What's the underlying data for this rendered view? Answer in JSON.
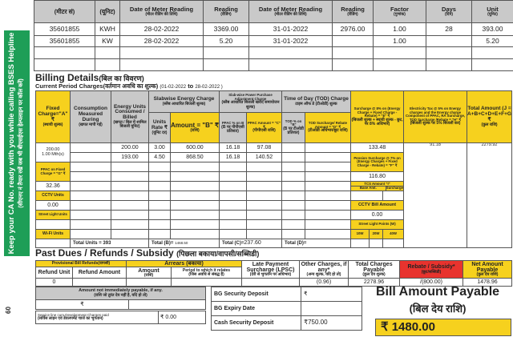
{
  "banner": {
    "line1": "Keep your CA No. ready with you while calling BSES Helpline",
    "line2": "(सीएनए नं तैयार रखें जब भी बीएसईएस हेल्पलाइन पर कॉल करें)"
  },
  "side_number": "60",
  "meter": {
    "headers": {
      "meter_no": "(मीटर सं)",
      "unit": "(यूनिट)",
      "date1": "Date of Meter Reading",
      "date1_hi": "(मीटर रीडिंग की तिथि)",
      "reading1": "Reading",
      "reading1_hi": "(रीडिंग)",
      "date2": "Date of Meter Reading",
      "date2_hi": "(मीटर रीडिंग की तिथि)",
      "reading2": "Reading",
      "reading2_hi": "(रीडिंग)",
      "factor": "Factor",
      "factor_hi": "(गुणांक)",
      "days": "Days",
      "days_hi": "(दिन)",
      "units": "Unit",
      "units_hi": "(यूनिट)"
    },
    "rows": [
      [
        "35601855",
        "KWH",
        "28-02-2022",
        "3369.00",
        "31-01-2022",
        "2976.00",
        "1.00",
        "28",
        "393.00"
      ],
      [
        "35601855",
        "KW",
        "28-02-2022",
        "5.20",
        "31-01-2022",
        "",
        "1.00",
        "",
        "5.20"
      ]
    ]
  },
  "billing": {
    "title": "Billing Details",
    "title_hi": "(बिल का विवरण)",
    "period_label": "Current Period Charges",
    "period_label_hi": "(वर्तमान अवधि का शुल्क)",
    "period_from": "(01-02-2022",
    "period_to_word": "to",
    "period_to": "28-02-2022 )",
    "h": {
      "fixed": "Fixed Charge=\"A\" ₹",
      "fixed_hi": "(स्थायी शुल्क)",
      "consumption": "Consumption Measured During",
      "consumption_hi": "(खपत मापी गई)",
      "energy_units": "Energy Units Consumed / Billed",
      "energy_units_hi": "(खपत / बिल में शामिल बिजली यूनिट)",
      "slab_energy": "Slabwise Energy Charge",
      "slab_energy_hi": "(स्लैब आधारित बिजली शुल्क)",
      "rate": "Units Rate ₹",
      "rate_hi": "(यूनिट दर)",
      "amount_b": "Amount = \"B\" ₹",
      "amount_b_hi": "(राशि)",
      "slab_ppac": "Slab-wise Power Purchase Adjustment Charge",
      "slab_ppac_hi": "(स्लैब आधारित बिजली खरीद समायोजन शुल्क)",
      "ppac_pct": "PPAC % on B",
      "ppac_pct_hi": "(B पर पीपीएसी प्रतिशत)",
      "ppac_amt": "PPAC Amount = \"C\" ₹",
      "ppac_amt_hi": "(पीपीएसी राशि)",
      "tod": "Time of Day (TOD) Charge",
      "tod_hi": "टाइम ऑफ डे (टीओडी) शुल्क",
      "tod_pct": "TOD % on \"B\"",
      "tod_pct_hi": "(B पर टीओडी प्रतिशत)",
      "tod_amt": "TOD Surcharge/ Rebate Amount = \"D\" ₹",
      "tod_amt_hi": "(टीओडी अधिभार/छूट राशि)",
      "surcharge": "Surcharge @ 8% on (Energy Charge + Fixed Charge - Rebate) = \"E\" ₹",
      "surcharge_hi": "(बिजली शुल्क + स्थायी शुल्क - छूट, पर 8% अधिभार)",
      "etax": "Electricity Tax @ 5% on Energy charges and the Energy charge Component of PPAC, RA Surcharge, TOD Surcharge /Rebate = \"H\" ₹",
      "etax_hi": "(बिजली शुल्क पर 5% बिजली कर)",
      "total": "Total Amount (J = A+B+C+D+E+F+G+H+I) ₹",
      "total_hi": "(कुल राशि)"
    },
    "fixed_value": "200.00",
    "fixed_months": "1.00 Mth(s)",
    "ppac_fixed_label": "PPAC on Fixed Charge = \"G\" ₹",
    "ppac_fixed_value": "32.36",
    "cctv_units_label": "CCTV Units",
    "cctv_units_value": "0.00",
    "street_units_label": "Street Light Units",
    "wifi_units_label": "Wi-Fi Units",
    "slabs": [
      {
        "units": "200.00",
        "rate": "3.00",
        "amount": "600.00",
        "ppac_pct": "16.18",
        "ppac_amt": "97.08"
      },
      {
        "units": "193.00",
        "rate": "4.50",
        "amount": "868.50",
        "ppac_pct": "16.18",
        "ppac_amt": "140.52"
      }
    ],
    "surcharge_value": "133.48",
    "pension_label": "Pension Surcharge @ 7% on (Energy Charges + Fixed Charge - Rebate) = \"F\" ₹",
    "pension_value": "116.80",
    "tcs_label": "TCS Amount \"I\"",
    "tcs_base": "Base Amt.",
    "tcs_surcharge": "Surcharge",
    "cctv_bill_label": "CCTV Bill Amount",
    "cctv_bill_value": "0.00",
    "street_points_label": "Street Light Points (W)",
    "w10": "10W",
    "w20": "20W",
    "w40": "40W",
    "etax_value": "91.18",
    "total_value": "2279.92",
    "totals": {
      "units": "Total Units = 393",
      "b_label": "Total (B)=",
      "b_value": "1468.50",
      "c_label": "Total (C)=",
      "c_value": "237.60",
      "d_label": "Total (D)="
    }
  },
  "dues": {
    "title": "Past Dues / Refunds / Subsidy",
    "title_hi": "(पिछला बकाया/वापसी/सब्सिडी)",
    "prov": "Provisional Bill Refunds(वापसी)",
    "arrears": "Arrears (बकाया)",
    "refund_unit": "Refund Unit",
    "refund_amount": "Refund Amount",
    "amount": "Amount",
    "amount_hi": "(राशि)",
    "period": "Period to which it relates",
    "period_hi": "(जिस अवधि से संबद्ध है)",
    "lpsc": "Late Payment Surcharge (LPSC)",
    "lpsc_hi": "(देरी से भुगतान पर अधिभार)",
    "other": "Other Charges, if any*",
    "other_hi": "(अन्य शुल्क, यदि हो तो)",
    "total": "Total Charges Payable",
    "total_hi": "(कुल देय शुल्क)",
    "rebate": "Rebate / Subsidy*",
    "rebate_hi": "(छूट/सब्सिडी)",
    "net": "Net Amount Payable",
    "net_hi": "(कुल देय राशि)",
    "row": {
      "refund_unit": "0",
      "refund_amount": "",
      "amount": "",
      "period": "",
      "lpsc": "",
      "other": "(0.96)",
      "total": "2278.96",
      "rebate": "/(800.00)",
      "net": "1478.96"
    }
  },
  "bottom": {
    "not_payable": "Amount not immediately payable, if any.",
    "not_payable_hi": "(राशि जो तुरंत देय नहीं है, यदि हो तो)",
    "rupee": "₹",
    "service_line": "Service line cum Development Charges paid",
    "service_line_hi": "(सर्विस लाइन एवं डेवलपमेंट चार्ज का भुगतान)",
    "service_value": "₹ 0.00",
    "bg_deposit": "BG  Security Deposit",
    "bg_deposit_value": "₹",
    "bg_expiry": "BG Expiry Date",
    "bg_expiry_value": "",
    "cash_deposit": "Cash Security Deposit",
    "cash_value": "₹750.00",
    "payable_title": "Bill Amount Payable",
    "payable_hi": "(बिल देय राशि)",
    "payable_value": "₹  1480.00"
  }
}
